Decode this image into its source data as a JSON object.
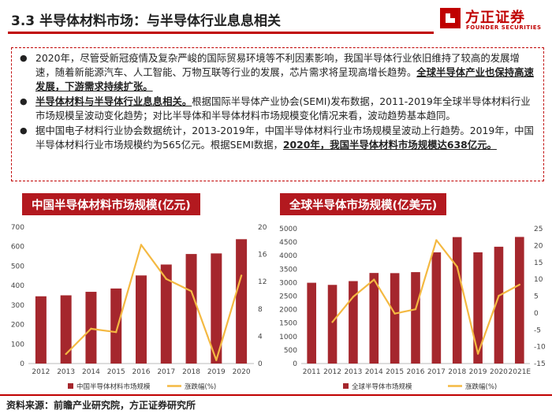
{
  "header": {
    "title": "3.3 半导体材料市场：与半导体行业息息相关",
    "logo_cn": "方正证券",
    "logo_en": "FOUNDER SECURITIES"
  },
  "bullets": [
    {
      "parts": [
        {
          "text": "2020年，尽管受新冠疫情及复杂严峻的国际贸易环境等不利因素影响，我国半导体行业依旧维持了较高的发展增速，随着新能源汽车、人工智能、万物互联等行业的发展，芯片需求将呈现高增长趋势。",
          "style": "normal"
        },
        {
          "text": "全球半导体产业也保持高速发展，下游需求持续扩张。",
          "style": "bold-underline"
        }
      ]
    },
    {
      "parts": [
        {
          "text": "半导体材料与半导体行业息息相关。",
          "style": "bold-underline"
        },
        {
          "text": "根据国际半导体产业协会(SEMI)发布数据，2011-2019年全球半导体材料行业市场规模呈波动变化趋势；对比半导体和半导体材料市场规模变化情况来看，波动趋势基本趋同。",
          "style": "normal"
        }
      ]
    },
    {
      "parts": [
        {
          "text": "据中国电子材料行业协会数据统计，2013-2019年，中国半导体材料行业市场规模呈波动上行趋势。2019年，中国半导体材料行业市场规模约为565亿元。根据SEMI数据，",
          "style": "normal"
        },
        {
          "text": "2020年，我国半导体材料市场规模达638亿元。",
          "style": "bold-underline"
        }
      ]
    }
  ],
  "chart_data": [
    {
      "type": "bar",
      "title": "中国半导体材料市场规模(亿元)",
      "categories": [
        "2012",
        "2013",
        "2014",
        "2015",
        "2016",
        "2017",
        "2018",
        "2019",
        "2020"
      ],
      "series": [
        {
          "name": "中国半导体材料市场规模",
          "type": "bar",
          "axis": "left",
          "color": "#a5272d",
          "values": [
            345,
            350,
            368,
            385,
            452,
            508,
            562,
            565,
            638
          ]
        },
        {
          "name": "涨跌幅(%)",
          "type": "line",
          "axis": "right",
          "color": "#f4b942",
          "values": [
            null,
            1.4,
            5.1,
            4.6,
            17.4,
            12.4,
            10.6,
            0.5,
            12.9
          ]
        }
      ],
      "ylim_left": [
        0,
        700
      ],
      "yticks_left": [
        0,
        100,
        200,
        300,
        400,
        500,
        600,
        700
      ],
      "ylim_right": [
        0,
        20
      ],
      "yticks_right": [
        0,
        4,
        8,
        12,
        16,
        20
      ],
      "legend": "bottom"
    },
    {
      "type": "bar",
      "title": "全球半导体市场规模(亿美元)",
      "categories": [
        "2011",
        "2012",
        "2013",
        "2014",
        "2015",
        "2016",
        "2017",
        "2018",
        "2019",
        "2020",
        "2021E"
      ],
      "series": [
        {
          "name": "全球半导体市场规模",
          "type": "bar",
          "axis": "left",
          "color": "#a5272d",
          "values": [
            2995,
            2916,
            3056,
            3358,
            3352,
            3389,
            4122,
            4688,
            4123,
            4331,
            4694
          ]
        },
        {
          "name": "涨跌幅(%)",
          "type": "line",
          "axis": "right",
          "color": "#f4b942",
          "values": [
            null,
            -2.7,
            4.8,
            9.9,
            -0.2,
            1.1,
            21.6,
            13.7,
            -12.1,
            5.1,
            8.4
          ]
        }
      ],
      "ylim_left": [
        0,
        5000
      ],
      "yticks_left": [
        0,
        500,
        1000,
        1500,
        2000,
        2500,
        3000,
        3500,
        4000,
        4500,
        5000
      ],
      "ylim_right": [
        -15,
        25
      ],
      "yticks_right": [
        -15,
        -10,
        -5,
        0,
        5,
        10,
        15,
        20,
        25
      ],
      "legend": "bottom"
    }
  ],
  "footer": {
    "source": "资料来源：前瞻产业研究院，方正证券研究所"
  }
}
